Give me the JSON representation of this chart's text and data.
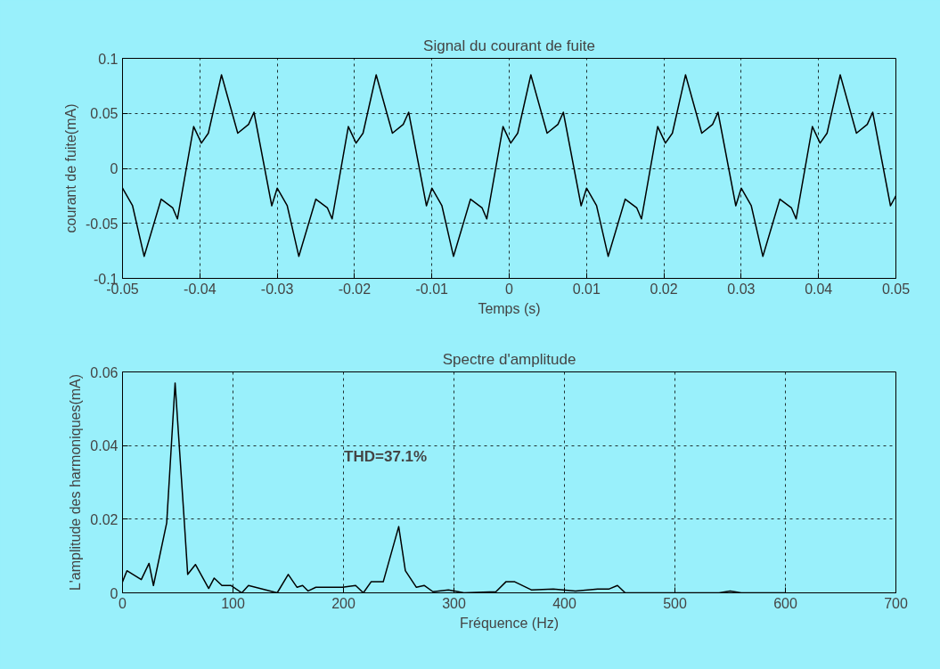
{
  "chart_data": [
    {
      "type": "line",
      "title": "Signal du courant de fuite",
      "xlabel": "Temps (s)",
      "ylabel": "courant de fuite(mA)",
      "color": "#000000",
      "x": [
        -0.05,
        -0.0487,
        -0.0472,
        -0.045,
        -0.0435,
        -0.0429,
        -0.0408,
        -0.0398,
        -0.0389,
        -0.0372,
        -0.0351,
        -0.0337,
        -0.033,
        -0.0307,
        -0.03,
        -0.0287,
        -0.0272,
        -0.025,
        -0.0235,
        -0.0229,
        -0.0208,
        -0.0198,
        -0.0189,
        -0.0172,
        -0.0151,
        -0.0137,
        -0.013,
        -0.0107,
        -0.01,
        -0.0087,
        -0.0072,
        -0.005,
        -0.0035,
        -0.0029,
        -0.0008,
        0.0002,
        0.0011,
        0.0028,
        0.0049,
        0.0063,
        0.007,
        0.0093,
        0.01,
        0.0113,
        0.0128,
        0.015,
        0.0165,
        0.0171,
        0.0192,
        0.0202,
        0.0211,
        0.0228,
        0.0249,
        0.0263,
        0.027,
        0.0293,
        0.03,
        0.0313,
        0.0328,
        0.035,
        0.0365,
        0.0371,
        0.0392,
        0.0402,
        0.0411,
        0.0428,
        0.0449,
        0.0463,
        0.047,
        0.0493,
        0.05
      ],
      "values": [
        -0.018,
        -0.034,
        -0.08,
        -0.028,
        -0.036,
        -0.046,
        0.038,
        0.023,
        0.032,
        0.085,
        0.032,
        0.04,
        0.051,
        -0.034,
        -0.018,
        -0.034,
        -0.08,
        -0.028,
        -0.036,
        -0.046,
        0.038,
        0.023,
        0.032,
        0.085,
        0.032,
        0.04,
        0.051,
        -0.034,
        -0.018,
        -0.034,
        -0.08,
        -0.028,
        -0.036,
        -0.046,
        0.038,
        0.023,
        0.032,
        0.085,
        0.032,
        0.04,
        0.051,
        -0.034,
        -0.018,
        -0.034,
        -0.08,
        -0.028,
        -0.036,
        -0.046,
        0.038,
        0.023,
        0.032,
        0.085,
        0.032,
        0.04,
        0.051,
        -0.034,
        -0.018,
        -0.034,
        -0.08,
        -0.028,
        -0.036,
        -0.046,
        0.038,
        0.023,
        0.032,
        0.085,
        0.032,
        0.04,
        0.051,
        -0.034,
        -0.025
      ],
      "xlim": [
        -0.05,
        0.05
      ],
      "ylim": [
        -0.1,
        0.1
      ],
      "xticks": [
        -0.05,
        -0.04,
        -0.03,
        -0.02,
        -0.01,
        0,
        0.01,
        0.02,
        0.03,
        0.04,
        0.05
      ],
      "yticks": [
        -0.1,
        -0.05,
        0,
        0.05,
        0.1
      ],
      "grid": true
    },
    {
      "type": "line",
      "title": "Spectre d'amplitude",
      "xlabel": "Fréquence (Hz)",
      "ylabel": "L'amplitude des harmoniques(mA)",
      "color": "#000000",
      "x": [
        0,
        4,
        17,
        24,
        28,
        40,
        47.6,
        56,
        59,
        66,
        78,
        83,
        90,
        98,
        108,
        114,
        140,
        150,
        158,
        163,
        168,
        175,
        199,
        211,
        218,
        225,
        236,
        250,
        256,
        266,
        273,
        281,
        295,
        309,
        338,
        347,
        355,
        370,
        390,
        410,
        430,
        440,
        448,
        455,
        540,
        550,
        560,
        600
      ],
      "values": [
        0.003,
        0.006,
        0.0036,
        0.008,
        0.002,
        0.019,
        0.057,
        0.019,
        0.005,
        0.0077,
        0.0012,
        0.004,
        0.002,
        0.002,
        0,
        0.002,
        0,
        0.005,
        0.0015,
        0.002,
        0.0005,
        0.0015,
        0.0015,
        0.002,
        0,
        0.003,
        0.003,
        0.018,
        0.006,
        0.0015,
        0.002,
        0.0003,
        0.0008,
        0,
        0.0003,
        0.003,
        0.003,
        0.0008,
        0.001,
        0.0005,
        0.001,
        0.001,
        0.002,
        0,
        0,
        0.0005,
        0,
        0
      ],
      "xlim": [
        0,
        700
      ],
      "ylim": [
        0,
        0.06
      ],
      "xticks": [
        0,
        100,
        200,
        300,
        400,
        500,
        600,
        700
      ],
      "yticks": [
        0,
        0.02,
        0.04,
        0.06
      ],
      "grid": true,
      "annotations": [
        "THD=37.1%"
      ]
    }
  ]
}
